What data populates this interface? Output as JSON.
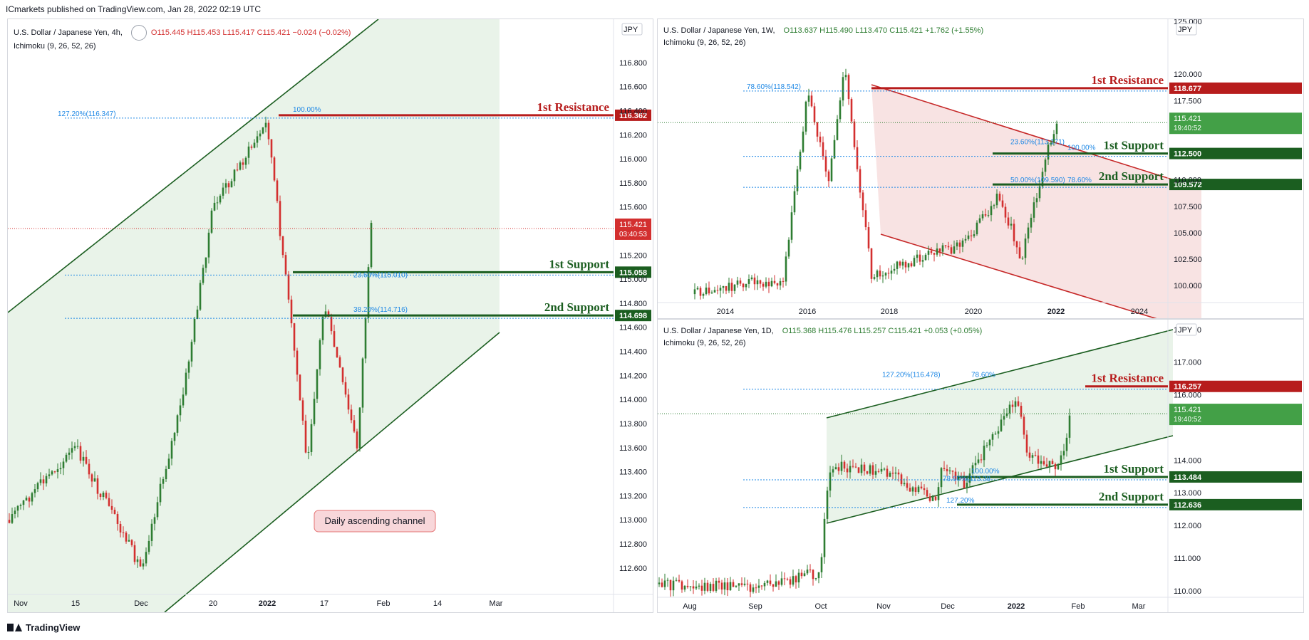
{
  "header": {
    "publisher": "ICmarkets published on TradingView.com, Jan 28, 2022 02:19 UTC"
  },
  "footer": {
    "brand": "TradingView"
  },
  "colors": {
    "up": "#26a69a",
    "green_candle": "#2e7d32",
    "red_candle": "#d32f2f",
    "resistance": "#b71c1c",
    "support": "#1b5e20",
    "channel_fill": "#e8f3e8",
    "fib": "#1e88e5"
  },
  "panels": [
    {
      "id": "h4",
      "title": "U.S. Dollar / Japanese Yen, 4h,",
      "indicator": "Ichimoku (9, 26, 52, 26)",
      "ohlc": {
        "o": "O115.445",
        "h": "H115.453",
        "l": "L115.417",
        "c": "C115.421",
        "chg": "−0.024 (−0.02%)"
      },
      "currency": "JPY",
      "last_price": "115.421",
      "countdown": "03:40:53",
      "x_labels": [
        "Nov",
        "15",
        "Dec",
        "20",
        "2022",
        "17",
        "Feb",
        "14",
        "Mar"
      ],
      "y_labels": [
        "116.800",
        "116.600",
        "116.400",
        "116.200",
        "116.000",
        "115.800",
        "115.600",
        "115.400",
        "115.200",
        "115.000",
        "114.800",
        "114.600",
        "114.400",
        "114.200",
        "114.000",
        "113.800",
        "113.600",
        "113.400",
        "113.200",
        "113.000",
        "112.800",
        "112.600"
      ],
      "levels": [
        {
          "name": "1st Resistance",
          "price": "116.362",
          "type": "res"
        },
        {
          "name": "1st Support",
          "price": "115.058",
          "type": "sup"
        },
        {
          "name": "2nd Support",
          "price": "114.698",
          "type": "sup"
        }
      ],
      "fibs": [
        "127.20%(116.347)",
        "100.00%",
        "23.60%(115.010)",
        "38.20%(114.716)"
      ],
      "annotation": "Daily ascending channel"
    },
    {
      "id": "w1",
      "title": "U.S. Dollar / Japanese Yen, 1W,",
      "indicator": "Ichimoku (9, 26, 52, 26)",
      "ohlc": {
        "o": "O113.637",
        "h": "H115.490",
        "l": "L113.470",
        "c": "C115.421",
        "chg": "+1.762 (+1.55%)"
      },
      "currency": "JPY",
      "last_price": "115.421",
      "countdown": "19:40:52",
      "x_labels": [
        "2014",
        "2016",
        "2018",
        "2020",
        "2022",
        "2024"
      ],
      "y_labels": [
        "125.000",
        "120.000",
        "117.500",
        "110.000",
        "107.500",
        "105.000",
        "102.500",
        "100.000"
      ],
      "levels": [
        {
          "name": "1st Resistance",
          "price": "118.677",
          "type": "res"
        },
        {
          "name": "1st Support",
          "price": "112.500",
          "type": "sup"
        },
        {
          "name": "2nd Support",
          "price": "109.572",
          "type": "sup"
        }
      ],
      "fibs": [
        "78.60%(118.542)",
        "23.60%(113.171)",
        "100.00%",
        "50.00%(109.590)",
        "78.60%"
      ]
    },
    {
      "id": "d1",
      "title": "U.S. Dollar / Japanese Yen, 1D,",
      "indicator": "Ichimoku (9, 26, 52, 26)",
      "ohlc": {
        "o": "O115.368",
        "h": "H115.476",
        "l": "L115.257",
        "c": "C115.421",
        "chg": "+0.053 (+0.05%)"
      },
      "currency": "JPY",
      "last_price": "115.421",
      "countdown": "19:40:52",
      "x_labels": [
        "Aug",
        "Sep",
        "Oct",
        "Nov",
        "Dec",
        "2022",
        "Feb",
        "Mar"
      ],
      "y_labels": [
        "118.000",
        "117.000",
        "116.000",
        "114.000",
        "113.000",
        "112.000",
        "111.000",
        "110.000"
      ],
      "levels": [
        {
          "name": "1st Resistance",
          "price": "116.257",
          "type": "res"
        },
        {
          "name": "1st Support",
          "price": "113.484",
          "type": "sup"
        },
        {
          "name": "2nd Support",
          "price": "112.636",
          "type": "sup"
        }
      ],
      "fibs": [
        "127.20%(116.478)",
        "78.60%",
        "100.00%",
        "78.60%(113.38",
        "127.20%"
      ]
    }
  ],
  "chart_data": [
    {
      "type": "line",
      "title": "U.S. Dollar / Japanese Yen, 4h,",
      "x": [
        "Nov",
        "15",
        "Dec",
        "20",
        "2022",
        "17",
        "Feb"
      ],
      "series": [
        {
          "values": [
            112.9,
            113.6,
            112.7,
            113.7,
            116.3,
            113.5,
            115.42
          ]
        }
      ],
      "ylim": [
        112.5,
        117.0
      ],
      "levels": [
        116.362,
        115.058,
        114.698
      ]
    },
    {
      "type": "line",
      "title": "U.S. Dollar / Japanese Yen, 1W,",
      "x": [
        "2014",
        "2016",
        "2018",
        "2020",
        "2022"
      ],
      "series": [
        {
          "values": [
            103.0,
            116.0,
            111.0,
            108.5,
            115.42
          ]
        }
      ],
      "ylim": [
        98.0,
        125.0
      ],
      "levels": [
        118.677,
        112.5,
        109.572
      ]
    },
    {
      "type": "line",
      "title": "U.S. Dollar / Japanese Yen, 1D,",
      "x": [
        "Aug",
        "Sep",
        "Oct",
        "Nov",
        "Dec",
        "2022",
        "Feb"
      ],
      "series": [
        {
          "values": [
            110.2,
            110.1,
            111.5,
            113.7,
            113.2,
            116.1,
            115.42
          ]
        }
      ],
      "ylim": [
        109.8,
        118.3
      ],
      "levels": [
        116.257,
        113.484,
        112.636
      ]
    }
  ]
}
